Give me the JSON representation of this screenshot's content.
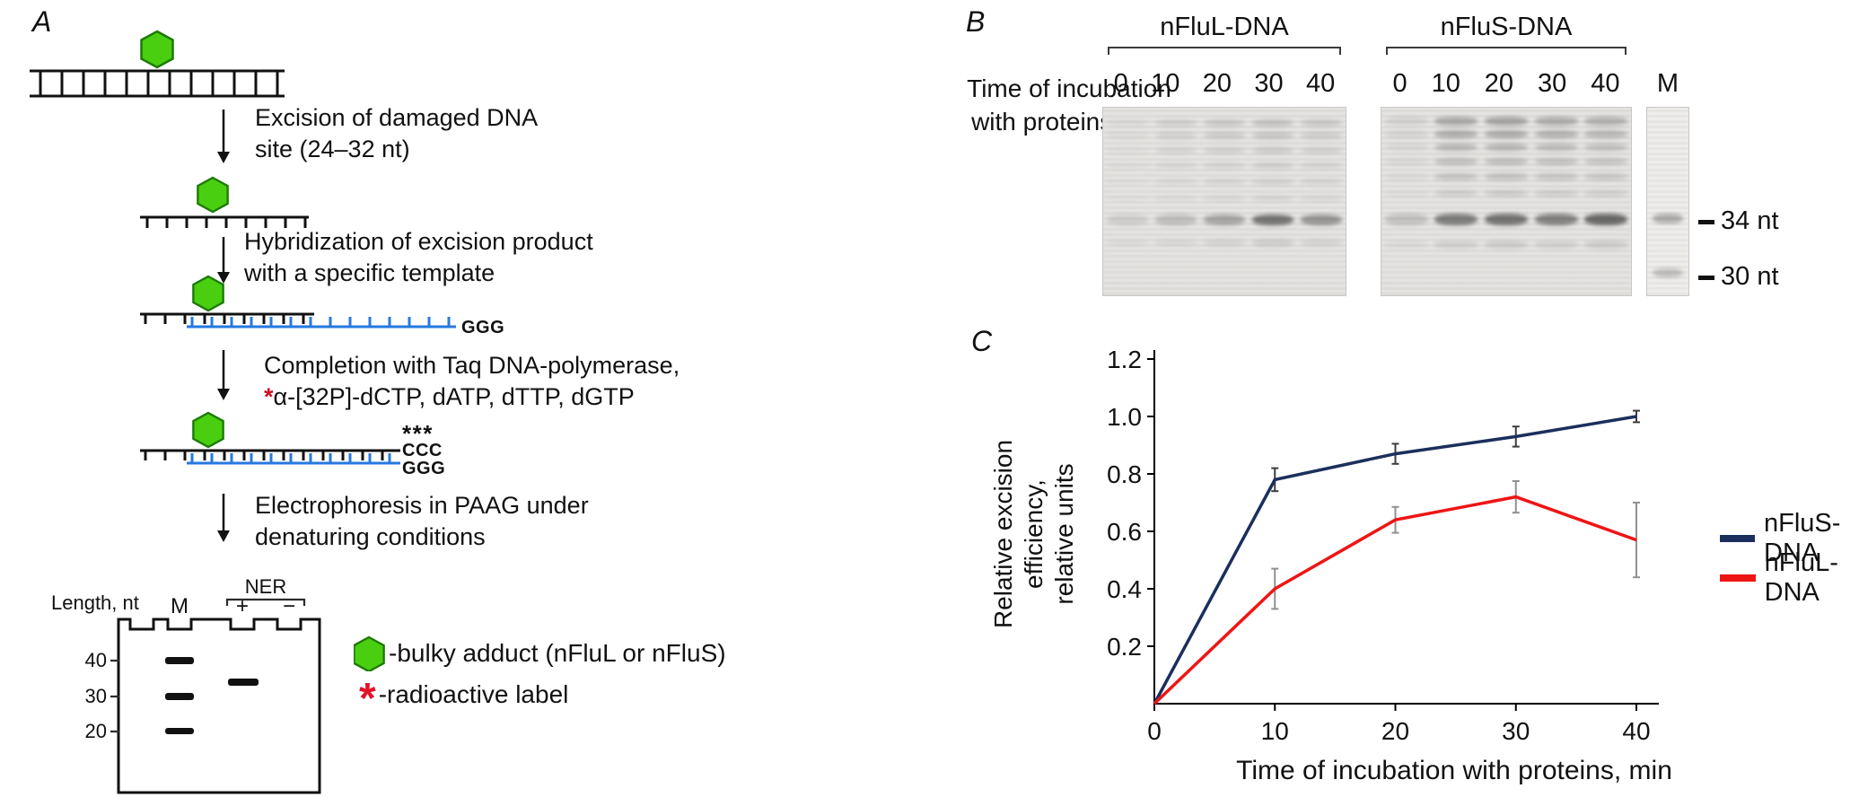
{
  "panel_a": {
    "label": "A",
    "step1_line1": "Excision of damaged DNA",
    "step1_line2": "site (24–32 nt)",
    "step2_line1": "Hybridization of excision product",
    "step2_line2": "with a specific template",
    "step3_line1": "Completion with Taq DNA-polymerase,",
    "step3_radioactive_mark": "*",
    "step3_line2": "α-[32P]-dCTP, dATP, dTTP, dGTP",
    "step4_line1": "Electrophoresis in PAAG under",
    "step4_line2": "denaturing conditions",
    "template_overhang": "GGG",
    "product_asterisks": "***",
    "product_ccc": "CCC",
    "template_ggg": "GGG",
    "gel_diagram": {
      "length_label": "Length, nt",
      "ner_label": "NER",
      "lane_m": "M",
      "lane_plus": "+",
      "lane_minus": "−",
      "marker_40": "40",
      "marker_30": "30",
      "marker_20": "20"
    },
    "legend_hexagon_text": "-bulky adduct (nFluL or nFluS)",
    "legend_asterisk_symbol": "*",
    "legend_asterisk_text": "-radioactive label",
    "adduct_color": "#49cf10",
    "template_color": "#2779e0",
    "radioactive_color": "#e31227"
  },
  "panel_b": {
    "label": "B",
    "gel1_title": "nFluL-DNA",
    "gel2_title": "nFluS-DNA",
    "row_label_line1": "Time of incubation",
    "row_label_line2": "with proteins, min",
    "lane_times": [
      "0",
      "10",
      "20",
      "30",
      "40"
    ],
    "marker_lane_label": "M",
    "marker_34": "34 nt",
    "marker_30": "30 nt",
    "gels": [
      {
        "title": "nFluL-DNA",
        "band_rows": [
          {
            "y": 0.57,
            "h": 0.055,
            "opacities": [
              0.1,
              0.18,
              0.3,
              0.55,
              0.38
            ]
          },
          {
            "y": 0.06,
            "h": 0.04,
            "opacities": [
              0.05,
              0.1,
              0.13,
              0.16,
              0.13
            ]
          },
          {
            "y": 0.13,
            "h": 0.038,
            "opacities": [
              0.04,
              0.09,
              0.12,
              0.14,
              0.11
            ]
          },
          {
            "y": 0.21,
            "h": 0.035,
            "opacities": [
              0.03,
              0.08,
              0.1,
              0.12,
              0.1
            ]
          },
          {
            "y": 0.29,
            "h": 0.033,
            "opacities": [
              0.03,
              0.06,
              0.08,
              0.1,
              0.08
            ]
          },
          {
            "y": 0.38,
            "h": 0.033,
            "opacities": [
              0.02,
              0.05,
              0.07,
              0.09,
              0.07
            ]
          },
          {
            "y": 0.47,
            "h": 0.03,
            "opacities": [
              0.02,
              0.04,
              0.06,
              0.08,
              0.06
            ]
          },
          {
            "y": 0.7,
            "h": 0.04,
            "opacities": [
              0.03,
              0.05,
              0.07,
              0.1,
              0.07
            ]
          }
        ]
      },
      {
        "title": "nFluS-DNA",
        "band_rows": [
          {
            "y": 0.565,
            "h": 0.06,
            "opacities": [
              0.16,
              0.5,
              0.55,
              0.48,
              0.6
            ]
          },
          {
            "y": 0.05,
            "h": 0.045,
            "opacities": [
              0.08,
              0.28,
              0.3,
              0.26,
              0.24
            ]
          },
          {
            "y": 0.12,
            "h": 0.042,
            "opacities": [
              0.07,
              0.26,
              0.27,
              0.24,
              0.21
            ]
          },
          {
            "y": 0.19,
            "h": 0.04,
            "opacities": [
              0.06,
              0.22,
              0.23,
              0.2,
              0.18
            ]
          },
          {
            "y": 0.27,
            "h": 0.038,
            "opacities": [
              0.05,
              0.18,
              0.19,
              0.17,
              0.15
            ]
          },
          {
            "y": 0.35,
            "h": 0.036,
            "opacities": [
              0.04,
              0.15,
              0.16,
              0.14,
              0.13
            ]
          },
          {
            "y": 0.44,
            "h": 0.034,
            "opacities": [
              0.03,
              0.11,
              0.12,
              0.11,
              0.1
            ]
          },
          {
            "y": 0.71,
            "h": 0.04,
            "opacities": [
              0.04,
              0.09,
              0.11,
              0.09,
              0.11
            ]
          }
        ]
      }
    ],
    "marker_bands": [
      {
        "y": 0.565,
        "h": 0.05,
        "o": 0.3
      },
      {
        "y": 0.855,
        "h": 0.05,
        "o": 0.22
      }
    ]
  },
  "panel_c": {
    "label": "C",
    "ylabel_line1": "Relative excision",
    "ylabel_line2": "efficiency,",
    "ylabel_line3": "relative units",
    "xlabel": "Time of incubation with proteins, min",
    "legend": [
      {
        "label": "nFluS-DNA",
        "color": "#1b2f5c"
      },
      {
        "label": "nFluL-DNA",
        "color": "#ee1515"
      }
    ]
  },
  "chart_data": {
    "type": "line",
    "title": "",
    "x": [
      0,
      10,
      20,
      30,
      40
    ],
    "xlabel": "Time of incubation with proteins, min",
    "ylabel": "Relative excision efficiency, relative units",
    "xlim": [
      0,
      40
    ],
    "ylim": [
      0,
      1.2
    ],
    "xticks": [
      0,
      10,
      20,
      30,
      40
    ],
    "yticks": [
      0.2,
      0.4,
      0.6,
      0.8,
      1.0,
      1.2
    ],
    "grid": false,
    "legend_position": "right",
    "series": [
      {
        "name": "nFluS-DNA",
        "color": "#1b2f5c",
        "error_color": "#3c3c3c",
        "values": [
          0,
          0.78,
          0.87,
          0.93,
          1.0
        ],
        "errors": [
          0,
          0.04,
          0.035,
          0.035,
          0.02
        ]
      },
      {
        "name": "nFluL-DNA",
        "color": "#ee1515",
        "error_color": "#909090",
        "values": [
          0,
          0.4,
          0.64,
          0.72,
          0.57
        ],
        "errors": [
          0,
          0.07,
          0.045,
          0.055,
          0.13
        ]
      }
    ]
  }
}
